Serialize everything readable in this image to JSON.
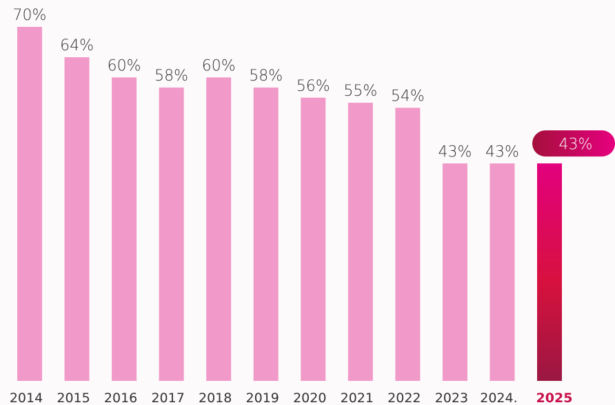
{
  "chart_data": {
    "type": "bar",
    "categories": [
      "2014",
      "2015",
      "2016",
      "2017",
      "2018",
      "2019",
      "2020",
      "2021",
      "2022",
      "2023",
      "2024.",
      "2025"
    ],
    "values": [
      70,
      64,
      60,
      58,
      60,
      58,
      56,
      55,
      54,
      43,
      43,
      43
    ],
    "value_labels": [
      "70%",
      "64%",
      "60%",
      "58%",
      "60%",
      "58%",
      "56%",
      "55%",
      "54%",
      "43%",
      "43%",
      "43%"
    ],
    "color": "#f199c8",
    "highlight_index": 11,
    "highlight_color": "#c8104a"
  }
}
